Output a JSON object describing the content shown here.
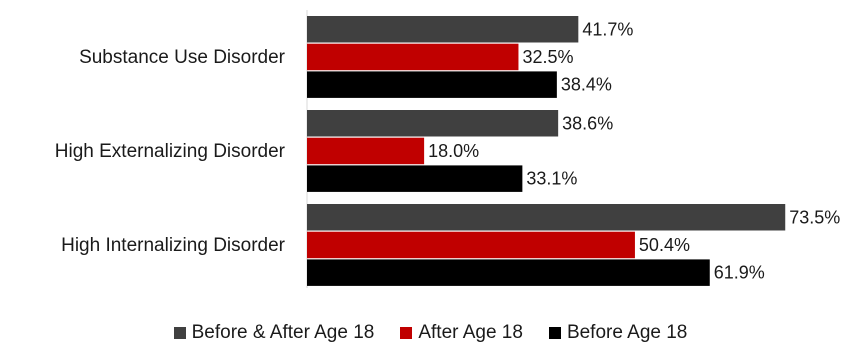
{
  "chart_data": {
    "type": "bar",
    "orientation": "horizontal",
    "categories": [
      "Substance Use Disorder",
      "High Externalizing Disorder",
      "High Internalizing Disorder"
    ],
    "series": [
      {
        "name": "Before & After Age 18",
        "color": "#404040",
        "values": [
          41.7,
          38.6,
          73.5
        ],
        "labels": [
          "41.7%",
          "38.6%",
          "73.5%"
        ]
      },
      {
        "name": "After Age 18",
        "color": "#c00000",
        "values": [
          32.5,
          18.0,
          50.4
        ],
        "labels": [
          "32.5%",
          "18.0%",
          "50.4%"
        ]
      },
      {
        "name": "Before Age 18",
        "color": "#000000",
        "values": [
          38.4,
          33.1,
          61.9
        ],
        "labels": [
          "38.4%",
          "33.1%",
          "61.9%"
        ]
      }
    ],
    "xlim": [
      0,
      75
    ],
    "value_axis_visible": false,
    "grid": false,
    "legend_position": "bottom"
  }
}
